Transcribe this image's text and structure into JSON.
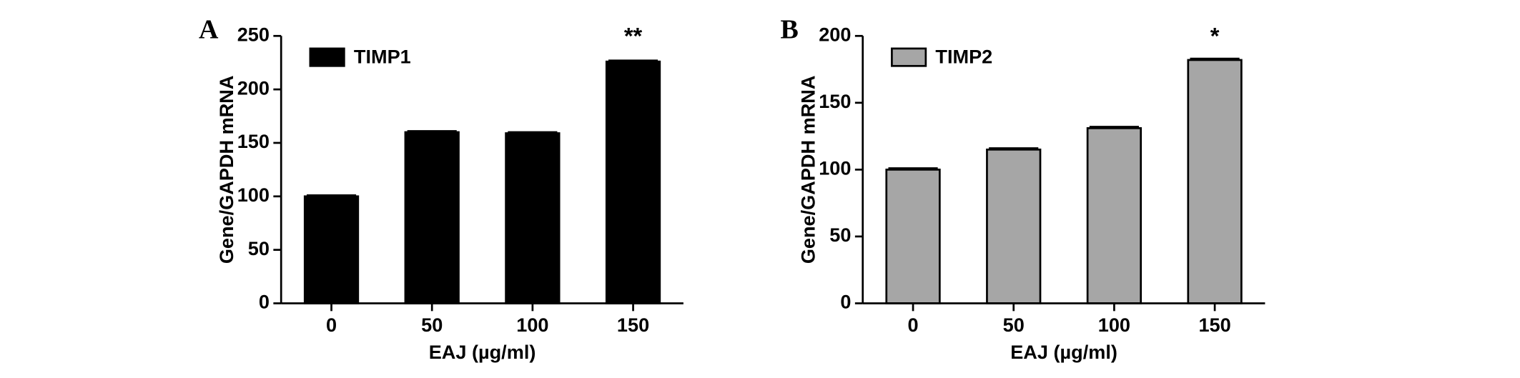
{
  "chart_data": [
    {
      "type": "bar",
      "panel": "A",
      "annotation": "**",
      "x_label": "EAJ (µg/ml)",
      "y_label": "Gene/GAPDH mRNA",
      "categories": [
        "0",
        "50",
        "100",
        "150"
      ],
      "series": [
        {
          "name": "TIMP1",
          "color": "#000000",
          "values": [
            100,
            160,
            159,
            226
          ],
          "errors": [
            1,
            1,
            1,
            1
          ]
        }
      ],
      "ylim": [
        0,
        250
      ],
      "yticks": [
        0,
        50,
        100,
        150,
        200,
        250
      ],
      "legend": "upper left"
    },
    {
      "type": "bar",
      "panel": "B",
      "annotation": "*",
      "x_label": "EAJ (µg/ml)",
      "y_label": "Gene/GAPDH mRNA",
      "categories": [
        "0",
        "50",
        "100",
        "150"
      ],
      "series": [
        {
          "name": "TIMP2",
          "color": "#a6a6a6",
          "values": [
            100,
            115,
            131,
            182
          ],
          "errors": [
            1,
            1,
            1,
            1
          ]
        }
      ],
      "ylim": [
        0,
        200
      ],
      "yticks": [
        0,
        50,
        100,
        150,
        200
      ],
      "legend": "upper left"
    }
  ]
}
